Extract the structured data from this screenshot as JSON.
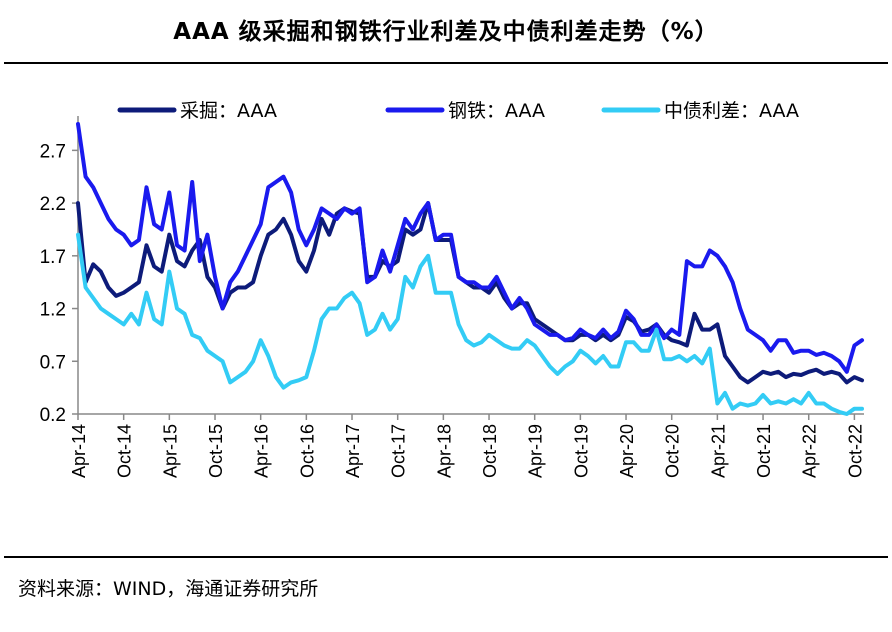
{
  "title": "AAA 级采掘和钢铁行业利差及中债利差走势（%）",
  "source": "资料来源：WIND，海通证券研究所",
  "colors": {
    "mining": "#0d1b7a",
    "steel": "#1a1aee",
    "cbond": "#33ccf5"
  },
  "chart_data": {
    "type": "line",
    "title": "AAA 级采掘和钢铁行业利差及中债利差走势（%）",
    "xlabel": "",
    "ylabel": "",
    "ylim": [
      0.2,
      2.95
    ],
    "yticks": [
      "0.2",
      "0.7",
      "1.2",
      "1.7",
      "2.2",
      "2.7"
    ],
    "xticks": [
      "Apr-14",
      "Oct-14",
      "Apr-15",
      "Oct-15",
      "Apr-16",
      "Oct-16",
      "Apr-17",
      "Oct-17",
      "Apr-18",
      "Oct-18",
      "Apr-19",
      "Oct-19",
      "Apr-20",
      "Oct-20",
      "Apr-21",
      "Oct-21",
      "Apr-22",
      "Oct-22"
    ],
    "x": [
      "2014-04",
      "2014-05",
      "2014-06",
      "2014-07",
      "2014-08",
      "2014-09",
      "2014-10",
      "2014-11",
      "2014-12",
      "2015-01",
      "2015-02",
      "2015-03",
      "2015-04",
      "2015-05",
      "2015-06",
      "2015-07",
      "2015-08",
      "2015-09",
      "2015-10",
      "2015-11",
      "2015-12",
      "2016-01",
      "2016-02",
      "2016-03",
      "2016-04",
      "2016-05",
      "2016-06",
      "2016-07",
      "2016-08",
      "2016-09",
      "2016-10",
      "2016-11",
      "2016-12",
      "2017-01",
      "2017-02",
      "2017-03",
      "2017-04",
      "2017-05",
      "2017-06",
      "2017-07",
      "2017-08",
      "2017-09",
      "2017-10",
      "2017-11",
      "2017-12",
      "2018-01",
      "2018-02",
      "2018-03",
      "2018-04",
      "2018-05",
      "2018-06",
      "2018-07",
      "2018-08",
      "2018-09",
      "2018-10",
      "2018-11",
      "2018-12",
      "2019-01",
      "2019-02",
      "2019-03",
      "2019-04",
      "2019-05",
      "2019-06",
      "2019-07",
      "2019-08",
      "2019-09",
      "2019-10",
      "2019-11",
      "2019-12",
      "2020-01",
      "2020-02",
      "2020-03",
      "2020-04",
      "2020-05",
      "2020-06",
      "2020-07",
      "2020-08",
      "2020-09",
      "2020-10",
      "2020-11",
      "2020-12",
      "2021-01",
      "2021-02",
      "2021-03",
      "2021-04",
      "2021-05",
      "2021-06",
      "2021-07",
      "2021-08",
      "2021-09",
      "2021-10",
      "2021-11",
      "2021-12",
      "2022-01",
      "2022-02",
      "2022-03",
      "2022-04",
      "2022-05",
      "2022-06",
      "2022-07",
      "2022-08",
      "2022-09",
      "2022-10",
      "2022-11"
    ],
    "legend_position": "top",
    "series": [
      {
        "name": "采掘：AAA",
        "color": "#0d1b7a",
        "values": [
          2.2,
          1.45,
          1.62,
          1.55,
          1.4,
          1.32,
          1.35,
          1.4,
          1.45,
          1.8,
          1.6,
          1.55,
          1.9,
          1.65,
          1.6,
          1.75,
          1.85,
          1.5,
          1.4,
          1.2,
          1.35,
          1.4,
          1.4,
          1.45,
          1.7,
          1.9,
          1.95,
          2.05,
          1.9,
          1.65,
          1.55,
          1.75,
          2.05,
          1.9,
          2.1,
          2.15,
          2.12,
          2.1,
          1.5,
          1.5,
          1.65,
          1.6,
          1.65,
          1.95,
          1.9,
          1.95,
          2.2,
          1.85,
          1.85,
          1.85,
          1.5,
          1.45,
          1.4,
          1.4,
          1.35,
          1.45,
          1.3,
          1.2,
          1.25,
          1.25,
          1.1,
          1.05,
          1.0,
          0.95,
          0.9,
          0.9,
          0.95,
          0.95,
          0.9,
          0.95,
          0.9,
          0.95,
          1.12,
          1.08,
          0.98,
          1.0,
          1.05,
          0.95,
          0.9,
          0.88,
          0.85,
          1.15,
          1.0,
          1.0,
          1.05,
          0.75,
          0.65,
          0.55,
          0.5,
          0.55,
          0.6,
          0.58,
          0.6,
          0.55,
          0.58,
          0.57,
          0.6,
          0.62,
          0.58,
          0.6,
          0.58,
          0.5,
          0.55,
          0.52
        ]
      },
      {
        "name": "钢铁：AAA",
        "color": "#1a1aee",
        "values": [
          2.95,
          2.45,
          2.35,
          2.2,
          2.05,
          1.95,
          1.9,
          1.8,
          1.85,
          2.35,
          2.0,
          1.95,
          2.3,
          1.8,
          1.75,
          2.4,
          1.65,
          1.9,
          1.5,
          1.2,
          1.45,
          1.55,
          1.7,
          1.85,
          2.0,
          2.35,
          2.4,
          2.45,
          2.3,
          1.95,
          1.8,
          1.95,
          2.15,
          2.1,
          2.05,
          2.15,
          2.1,
          2.15,
          1.45,
          1.5,
          1.75,
          1.55,
          1.8,
          2.05,
          1.95,
          2.1,
          2.2,
          1.85,
          1.9,
          1.9,
          1.5,
          1.45,
          1.45,
          1.4,
          1.4,
          1.5,
          1.35,
          1.2,
          1.3,
          1.2,
          1.05,
          1.0,
          0.95,
          0.95,
          0.9,
          0.92,
          1.0,
          0.95,
          0.92,
          1.0,
          0.92,
          0.98,
          1.18,
          1.1,
          0.95,
          0.95,
          1.05,
          0.92,
          1.0,
          0.95,
          1.65,
          1.6,
          1.6,
          1.75,
          1.7,
          1.6,
          1.45,
          1.2,
          1.0,
          0.95,
          0.9,
          0.8,
          0.9,
          0.9,
          0.78,
          0.8,
          0.8,
          0.76,
          0.78,
          0.75,
          0.7,
          0.6,
          0.85,
          0.9
        ]
      },
      {
        "name": "中债利差：AAA",
        "color": "#33ccf5",
        "values": [
          1.9,
          1.4,
          1.3,
          1.2,
          1.15,
          1.1,
          1.05,
          1.15,
          1.05,
          1.35,
          1.1,
          1.05,
          1.55,
          1.2,
          1.15,
          0.95,
          0.92,
          0.8,
          0.75,
          0.7,
          0.5,
          0.55,
          0.6,
          0.7,
          0.9,
          0.75,
          0.55,
          0.45,
          0.5,
          0.52,
          0.55,
          0.8,
          1.1,
          1.2,
          1.2,
          1.3,
          1.35,
          1.25,
          0.95,
          1.0,
          1.15,
          1.0,
          1.1,
          1.5,
          1.4,
          1.6,
          1.7,
          1.35,
          1.35,
          1.35,
          1.05,
          0.9,
          0.85,
          0.88,
          0.95,
          0.9,
          0.85,
          0.82,
          0.82,
          0.9,
          0.85,
          0.75,
          0.65,
          0.58,
          0.65,
          0.7,
          0.8,
          0.75,
          0.68,
          0.75,
          0.65,
          0.65,
          0.88,
          0.88,
          0.8,
          0.8,
          1.0,
          0.72,
          0.72,
          0.75,
          0.7,
          0.75,
          0.68,
          0.82,
          0.3,
          0.4,
          0.25,
          0.3,
          0.28,
          0.3,
          0.38,
          0.3,
          0.32,
          0.3,
          0.34,
          0.3,
          0.4,
          0.3,
          0.3,
          0.25,
          0.22,
          0.2,
          0.25,
          0.25
        ]
      }
    ]
  }
}
